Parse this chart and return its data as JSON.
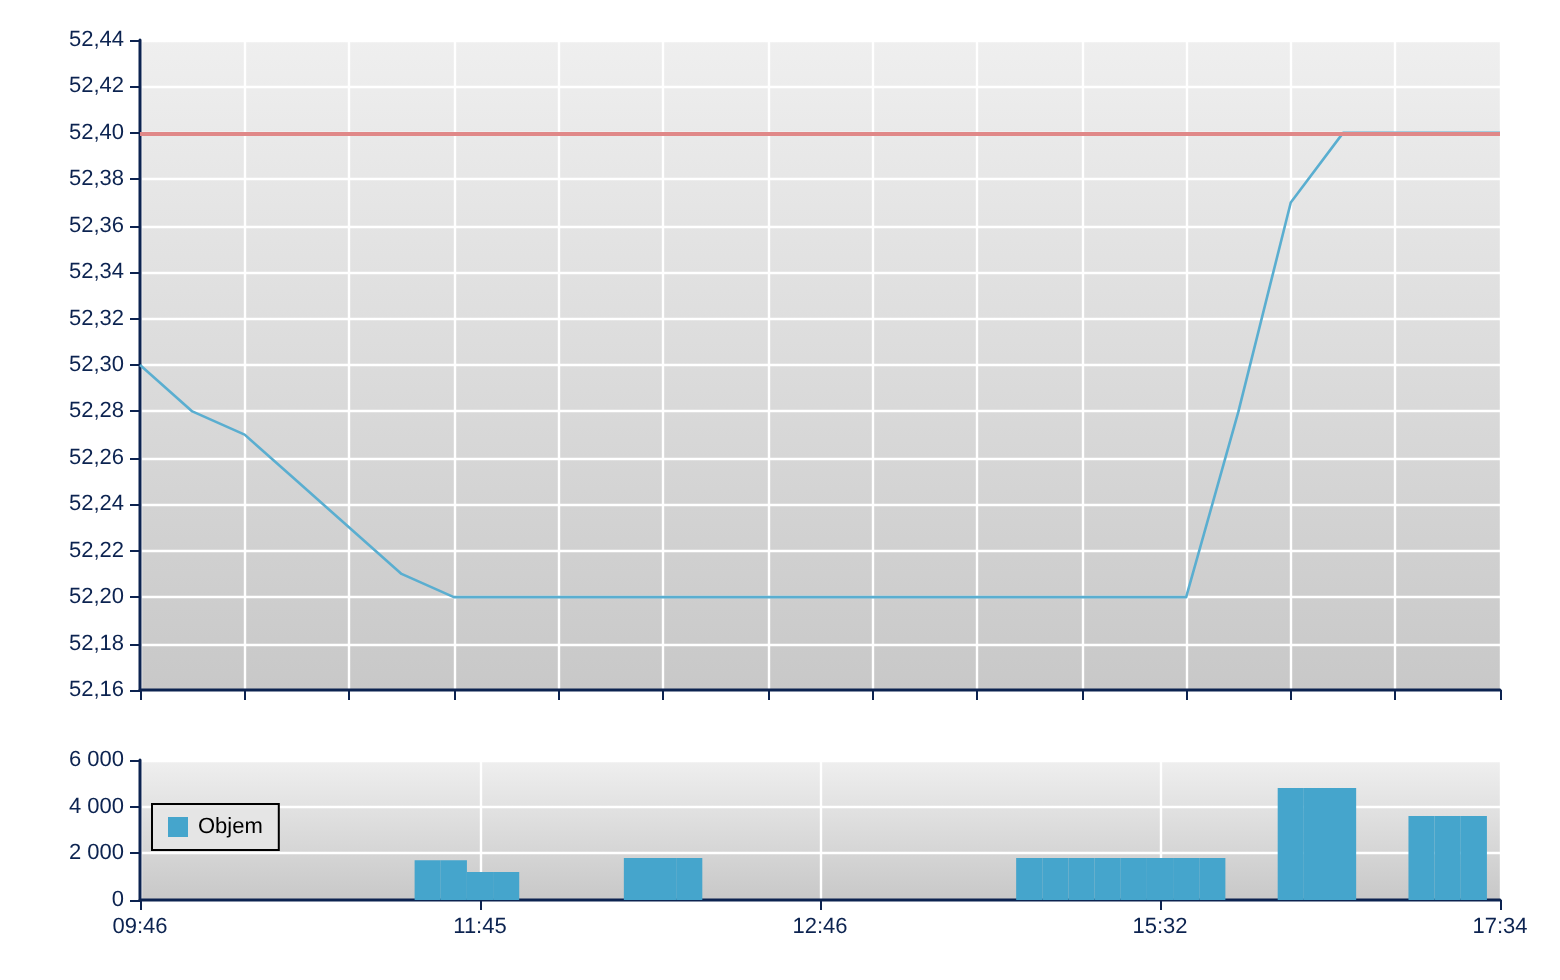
{
  "chart_data": [
    {
      "type": "line",
      "categories": [
        null,
        null,
        null,
        null,
        null,
        null,
        null,
        null,
        null,
        null,
        null,
        null,
        null,
        null,
        null,
        null,
        null,
        null,
        null,
        null,
        null,
        null,
        null,
        null,
        null,
        null,
        null
      ],
      "values": [
        52.3,
        52.28,
        52.27,
        52.25,
        52.23,
        52.21,
        52.2,
        52.2,
        52.2,
        52.2,
        52.2,
        52.2,
        52.2,
        52.2,
        52.2,
        52.2,
        52.2,
        52.2,
        52.2,
        52.2,
        52.2,
        52.28,
        52.37,
        52.4,
        52.4,
        52.4,
        52.4
      ],
      "color": "#5aaed0",
      "ylim": [
        52.16,
        52.44
      ],
      "yticks": [
        {
          "value": 52.16,
          "label": "52,16"
        },
        {
          "value": 52.18,
          "label": "52,18"
        },
        {
          "value": 52.2,
          "label": "52,20"
        },
        {
          "value": 52.22,
          "label": "52,22"
        },
        {
          "value": 52.24,
          "label": "52,24"
        },
        {
          "value": 52.26,
          "label": "52,26"
        },
        {
          "value": 52.28,
          "label": "52,28"
        },
        {
          "value": 52.3,
          "label": "52,30"
        },
        {
          "value": 52.32,
          "label": "52,32"
        },
        {
          "value": 52.34,
          "label": "52,34"
        },
        {
          "value": 52.36,
          "label": "52,36"
        },
        {
          "value": 52.38,
          "label": "52,38"
        },
        {
          "value": 52.4,
          "label": "52,40"
        },
        {
          "value": 52.42,
          "label": "52,42"
        },
        {
          "value": 52.44,
          "label": "52,44"
        }
      ],
      "ref_lines": [
        {
          "axis": "y",
          "value": 52.4,
          "color": "#e08888"
        }
      ],
      "grid": true,
      "tick_labels": "y"
    },
    {
      "type": "bar",
      "categories": [
        "09:46",
        null,
        null,
        null,
        null,
        null,
        null,
        null,
        null,
        null,
        null,
        null,
        null,
        "11:45",
        null,
        null,
        null,
        null,
        null,
        null,
        null,
        null,
        null,
        null,
        null,
        null,
        "12:46",
        null,
        null,
        null,
        null,
        null,
        null,
        null,
        null,
        null,
        null,
        null,
        null,
        "15:32",
        null,
        null,
        null,
        null,
        null,
        null,
        null,
        null,
        null,
        null,
        null,
        null,
        "17:34"
      ],
      "series": [
        {
          "name": "Objem",
          "color": "#45a5cc",
          "values": [
            null,
            null,
            null,
            null,
            null,
            null,
            null,
            null,
            null,
            null,
            null,
            1700,
            1700,
            1200,
            1200,
            null,
            null,
            null,
            null,
            1800,
            1800,
            1800,
            null,
            null,
            null,
            null,
            null,
            null,
            null,
            null,
            null,
            null,
            null,
            null,
            1800,
            1800,
            1800,
            1800,
            1800,
            1800,
            1800,
            1800,
            null,
            null,
            4800,
            4800,
            4800,
            null,
            null,
            3600,
            3600,
            3600,
            null
          ]
        }
      ],
      "ylim": [
        0,
        6000
      ],
      "yticks": [
        {
          "value": 0,
          "label": "0"
        },
        {
          "value": 2000,
          "label": "2 000"
        },
        {
          "value": 4000,
          "label": "4 000"
        },
        {
          "value": 6000,
          "label": "6 000"
        }
      ],
      "grid": true,
      "legend": "top left"
    }
  ]
}
